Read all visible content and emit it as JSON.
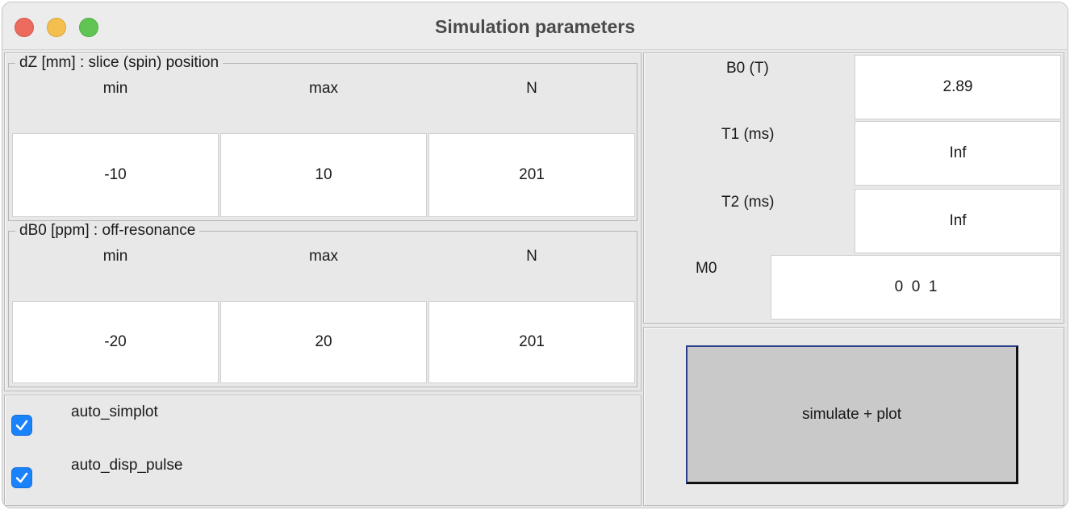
{
  "window": {
    "title": "Simulation parameters"
  },
  "dz": {
    "legend": "dZ [mm] : slice (spin) position",
    "headers": {
      "min": "min",
      "max": "max",
      "n": "N"
    },
    "values": {
      "min": "-10",
      "max": "10",
      "n": "201"
    }
  },
  "db0": {
    "legend": "dB0 [ppm] : off-resonance",
    "headers": {
      "min": "min",
      "max": "max",
      "n": "N"
    },
    "values": {
      "min": "-20",
      "max": "20",
      "n": "201"
    }
  },
  "params": {
    "b0": {
      "label": "B0 (T)",
      "value": "2.89"
    },
    "t1": {
      "label": "T1 (ms)",
      "value": "Inf"
    },
    "t2": {
      "label": "T2 (ms)",
      "value": "Inf"
    },
    "m0": {
      "label": "M0",
      "value": "0  0  1"
    }
  },
  "options": {
    "auto_simplot": {
      "label": "auto_simplot",
      "checked": true
    },
    "auto_disp_pulse": {
      "label": "auto_disp_pulse",
      "checked": true
    }
  },
  "actions": {
    "simulate_label": "simulate + plot"
  },
  "colors": {
    "checkbox": "#1a82fb",
    "button_face": "#c9c9c9",
    "button_focus": "#2a3c8a"
  }
}
